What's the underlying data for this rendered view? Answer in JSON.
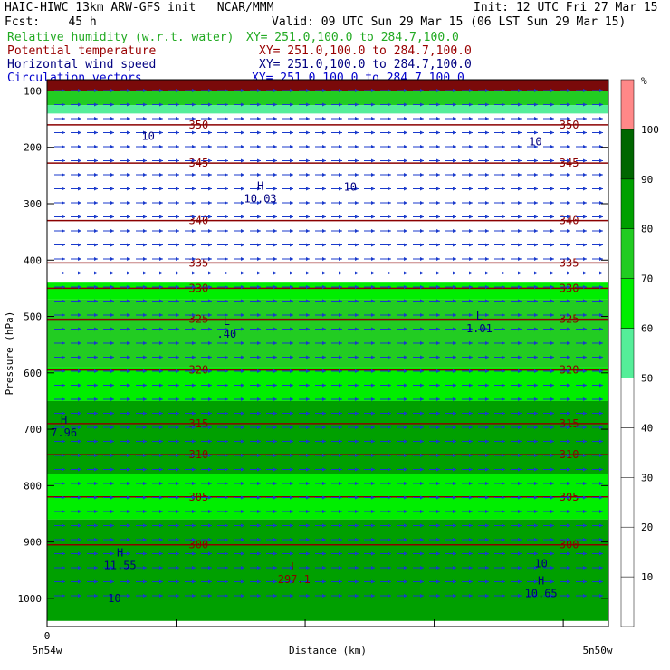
{
  "header": {
    "line1_left": "HAIC-HIWC 13km ARW-GFS init   NCAR/MMM",
    "line1_right": "Init: 12 UTC Fri 27 Mar 15",
    "line2_left": "Fcst:    45 h",
    "line2_right": "Valid: 09 UTC Sun 29 Mar 15 (06 LST Sun 29 Mar 15)",
    "fields": [
      {
        "name": "Relative humidity (w.r.t. water)",
        "xy": "XY= 251.0,100.0 to 284.7,100.0",
        "color": "#22aa22"
      },
      {
        "name": "Potential temperature",
        "xy": "XY= 251.0,100.0 to 284.7,100.0",
        "color": "#990000"
      },
      {
        "name": "Horizontal wind speed",
        "xy": "XY= 251.0,100.0 to 284.7,100.0",
        "color": "#000080"
      },
      {
        "name": "Circulation vectors",
        "xy": "XY= 251.0,100.0 to 284.7,100.0",
        "color": "#0000cc"
      }
    ]
  },
  "chart_data": {
    "type": "heatmap",
    "ylabel": "Pressure (hPa)",
    "xlabel": "Distance (km)",
    "x_left_label": "5n54w",
    "x_right_label": "5n50w",
    "x_zero_label": "0",
    "y_ticks": [
      100,
      200,
      300,
      400,
      500,
      600,
      700,
      800,
      900,
      1000
    ],
    "x_tick_count": 5,
    "colorbar": {
      "unit": "%",
      "levels": [
        10,
        20,
        30,
        40,
        50,
        60,
        70,
        80,
        90,
        100
      ],
      "colors": [
        "#ffffff",
        "#ffffff",
        "#ffffff",
        "#ffffff",
        "#ffffff",
        "#55ee99",
        "#00ee00",
        "#22cc22",
        "#00a000",
        "#006600",
        "#ff8888"
      ]
    },
    "rh_bands": [
      {
        "p_top": 80,
        "p_bot": 100,
        "color": "#7a0a0a"
      },
      {
        "p_top": 100,
        "p_bot": 125,
        "color": "#22cc22"
      },
      {
        "p_top": 125,
        "p_bot": 140,
        "color": "#55ee99"
      },
      {
        "p_top": 440,
        "p_bot": 470,
        "color": "#00ee00"
      },
      {
        "p_top": 470,
        "p_bot": 590,
        "color": "#22cc22"
      },
      {
        "p_top": 590,
        "p_bot": 650,
        "color": "#00ee00"
      },
      {
        "p_top": 650,
        "p_bot": 780,
        "color": "#00a000"
      },
      {
        "p_top": 780,
        "p_bot": 860,
        "color": "#00ee00"
      },
      {
        "p_top": 860,
        "p_bot": 1040,
        "color": "#00a000"
      }
    ],
    "theta_contours": [
      {
        "label": "350",
        "p": 160
      },
      {
        "label": "345",
        "p": 228
      },
      {
        "label": "340",
        "p": 330
      },
      {
        "label": "335",
        "p": 405
      },
      {
        "label": "330",
        "p": 450
      },
      {
        "label": "325",
        "p": 505
      },
      {
        "label": "320",
        "p": 595
      },
      {
        "label": "315",
        "p": 690
      },
      {
        "label": "310",
        "p": 745
      },
      {
        "label": "305",
        "p": 820
      },
      {
        "label": "300",
        "p": 905
      }
    ],
    "wind_labels": [
      {
        "label": "10",
        "x": 0.18,
        "p": 180
      },
      {
        "label": "10",
        "x": 0.87,
        "p": 190
      },
      {
        "label": "10",
        "x": 0.54,
        "p": 270
      },
      {
        "label": "10",
        "x": 0.88,
        "p": 938
      },
      {
        "label": "10",
        "x": 0.12,
        "p": 1000
      }
    ],
    "extrema": [
      {
        "type": "H",
        "value": "10.03",
        "x": 0.38,
        "p": 285
      },
      {
        "type": "L",
        "value": ".40",
        "x": 0.32,
        "p": 525
      },
      {
        "type": "L",
        "value": "1.01",
        "x": 0.77,
        "p": 515
      },
      {
        "type": "H",
        "value": "7.96",
        "x": 0.03,
        "p": 700
      },
      {
        "type": "H",
        "value": "11.55",
        "x": 0.13,
        "p": 935
      },
      {
        "type": "H",
        "value": "10.65",
        "x": 0.88,
        "p": 985
      },
      {
        "type": "L",
        "value": "297.1",
        "x": 0.44,
        "p": 960
      }
    ]
  }
}
